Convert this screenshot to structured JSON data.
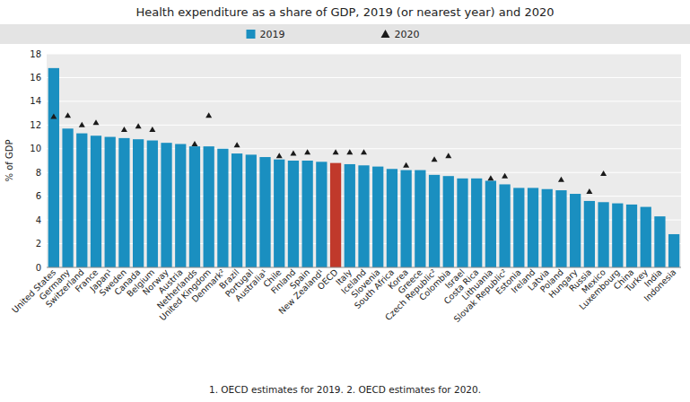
{
  "chart_data": {
    "type": "bar",
    "title": "Health expenditure as a share of GDP, 2019 (or nearest year) and 2020",
    "y_label": "% of GDP",
    "annotations": [
      "1. OECD estimates for 2019.  2. OECD estimates for 2020."
    ],
    "categories": [
      "United States",
      "Germany",
      "Switzerland",
      "France",
      "Japan¹",
      "Sweden",
      "Canada",
      "Belgium",
      "Norway",
      "Austria",
      "Netherlands",
      "United Kingdom",
      "Denmark²",
      "Brazil",
      "Portugal",
      "Australia¹",
      "Chile",
      "Finland",
      "Spain",
      "New Zealand¹",
      "OECD",
      "Italy",
      "Iceland",
      "Slovenia",
      "South Africa",
      "Korea",
      "Greece",
      "Czech Republic²",
      "Colombia",
      "Israel",
      "Costa Rica",
      "Lithuania",
      "Slovak Republic²",
      "Estonia",
      "Ireland",
      "Latvia",
      "Poland",
      "Hungary",
      "Russia",
      "Mexico",
      "Luxembourg",
      "China",
      "Turkey",
      "India",
      "Indonesia"
    ],
    "series": [
      {
        "name": "2019",
        "type": "bar",
        "color": "#1a8fc0",
        "colors": [
          "#1a8fc0",
          "#1a8fc0",
          "#1a8fc0",
          "#1a8fc0",
          "#1a8fc0",
          "#1a8fc0",
          "#1a8fc0",
          "#1a8fc0",
          "#1a8fc0",
          "#1a8fc0",
          "#1a8fc0",
          "#1a8fc0",
          "#1a8fc0",
          "#1a8fc0",
          "#1a8fc0",
          "#1a8fc0",
          "#1a8fc0",
          "#1a8fc0",
          "#1a8fc0",
          "#1a8fc0",
          "#c0392b",
          "#1a8fc0",
          "#1a8fc0",
          "#1a8fc0",
          "#1a8fc0",
          "#1a8fc0",
          "#1a8fc0",
          "#1a8fc0",
          "#1a8fc0",
          "#1a8fc0",
          "#1a8fc0",
          "#1a8fc0",
          "#1a8fc0",
          "#1a8fc0",
          "#1a8fc0",
          "#1a8fc0",
          "#1a8fc0",
          "#1a8fc0",
          "#1a8fc0",
          "#1a8fc0",
          "#1a8fc0",
          "#1a8fc0",
          "#1a8fc0",
          "#1a8fc0",
          "#1a8fc0"
        ],
        "values": [
          16.8,
          11.7,
          11.3,
          11.1,
          11.0,
          10.9,
          10.8,
          10.7,
          10.5,
          10.4,
          10.2,
          10.2,
          10.0,
          9.6,
          9.5,
          9.3,
          9.1,
          9.0,
          9.0,
          8.9,
          8.8,
          8.7,
          8.6,
          8.5,
          8.3,
          8.2,
          8.2,
          7.8,
          7.7,
          7.5,
          7.5,
          7.3,
          7.0,
          6.7,
          6.7,
          6.6,
          6.5,
          6.2,
          5.6,
          5.5,
          5.4,
          5.3,
          5.1,
          4.3,
          2.8
        ]
      },
      {
        "name": "2020",
        "type": "scatter",
        "marker": "triangle",
        "color": "#1a1a1a",
        "values": [
          12.7,
          12.8,
          12.0,
          12.2,
          null,
          11.6,
          11.9,
          11.6,
          null,
          null,
          10.4,
          12.8,
          null,
          10.3,
          null,
          null,
          9.4,
          9.6,
          9.7,
          null,
          9.7,
          9.7,
          9.7,
          null,
          null,
          8.6,
          null,
          9.1,
          9.4,
          null,
          null,
          7.5,
          7.7,
          null,
          null,
          null,
          7.4,
          null,
          6.4,
          7.9,
          null,
          null,
          null,
          null,
          null
        ]
      }
    ],
    "ylim": [
      0,
      18
    ],
    "yticks": [
      0,
      2,
      4,
      6,
      8,
      10,
      12,
      14,
      16,
      18
    ],
    "grid": true,
    "legend": "top"
  }
}
